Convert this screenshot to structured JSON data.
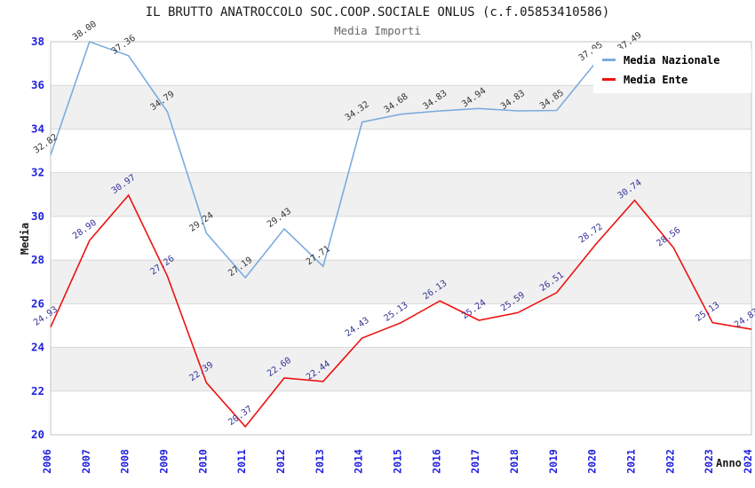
{
  "header": {
    "title": "IL BRUTTO ANATROCCOLO SOC.COOP.SOCIALE ONLUS (c.f.05853410586)",
    "subtitle": "Media Importi"
  },
  "legend": {
    "position": "top-right",
    "items": [
      {
        "label": "Media Nazionale",
        "color": "#7cabdf"
      },
      {
        "label": "Media Ente",
        "color": "#ee1111"
      }
    ]
  },
  "colors": {
    "tick_label": "#2222dd",
    "grid_line": "#d9d9d9",
    "band_fill": "#f0f0f0",
    "plot_border": "#c6c6c6",
    "nazionale_line": "#7cabdf",
    "nazionale_point_label": "#333333",
    "ente_line": "#ee1111",
    "ente_point_label": "#333399"
  },
  "chart_data": {
    "type": "line",
    "title": "IL BRUTTO ANATROCCOLO SOC.COOP.SOCIALE ONLUS (c.f.05853410586)",
    "subtitle": "Media Importi",
    "xlabel": "Anno",
    "ylabel": "Media",
    "ylim": [
      20,
      38
    ],
    "ytick_step": 2,
    "grid": "horizontal gridlines with alternating shaded bands",
    "legend_position": "top-right",
    "x": [
      2006,
      2007,
      2008,
      2009,
      2010,
      2011,
      2012,
      2013,
      2014,
      2015,
      2016,
      2017,
      2018,
      2019,
      2020,
      2021,
      2022,
      2023,
      2024
    ],
    "series": [
      {
        "name": "Media Nazionale",
        "color": "#7cabdf",
        "label_color": "#333333",
        "values": [
          32.82,
          38.0,
          37.36,
          34.79,
          29.24,
          27.19,
          29.43,
          27.71,
          34.32,
          34.68,
          34.83,
          34.94,
          34.83,
          34.85,
          37.05,
          37.49,
          null,
          null,
          null
        ]
      },
      {
        "name": "Media Ente",
        "color": "#ee1111",
        "label_color": "#333399",
        "values": [
          24.93,
          28.9,
          30.97,
          27.26,
          22.39,
          20.37,
          22.6,
          22.44,
          24.43,
          25.13,
          26.13,
          25.24,
          25.59,
          26.51,
          28.72,
          30.74,
          28.56,
          25.13,
          24.83
        ]
      }
    ]
  }
}
